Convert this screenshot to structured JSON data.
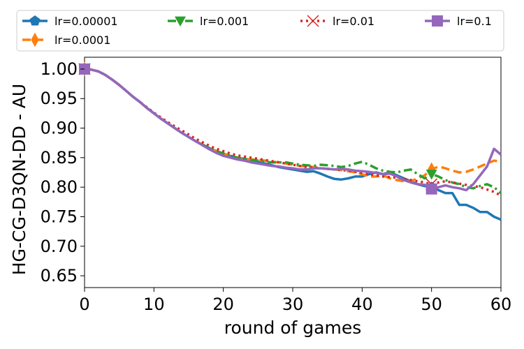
{
  "chart_data": {
    "type": "line",
    "title": "",
    "xlabel": "round of games",
    "ylabel": "HG-CG-D3QN-DD - AU",
    "xlim": [
      0,
      60
    ],
    "ylim": [
      0.63,
      1.02
    ],
    "xticks": [
      0,
      10,
      20,
      30,
      40,
      50,
      60
    ],
    "xtick_labels": [
      "0",
      "10",
      "20",
      "30",
      "40",
      "50",
      "60"
    ],
    "yticks": [
      0.65,
      0.7,
      0.75,
      0.8,
      0.85,
      0.9,
      0.95,
      1.0
    ],
    "ytick_labels": [
      "0.65",
      "0.70",
      "0.75",
      "0.80",
      "0.85",
      "0.90",
      "0.95",
      "1.00"
    ],
    "grid": false,
    "legend_position": "top, above plot",
    "legend_columns": 4,
    "series": [
      {
        "name": "lr=0.00001",
        "color": "#1f77b4",
        "dash": "solid",
        "marker": "pentagon",
        "x": [
          0,
          1,
          2,
          3,
          4,
          5,
          6,
          7,
          8,
          9,
          10,
          11,
          12,
          13,
          14,
          15,
          16,
          17,
          18,
          19,
          20,
          21,
          22,
          23,
          24,
          25,
          26,
          27,
          28,
          29,
          30,
          31,
          32,
          33,
          34,
          35,
          36,
          37,
          38,
          39,
          40,
          41,
          42,
          43,
          44,
          45,
          46,
          47,
          48,
          49,
          50,
          51,
          52,
          53,
          54,
          55,
          56,
          57,
          58,
          59,
          60
        ],
        "values": [
          1.0,
          0.999,
          0.996,
          0.99,
          0.982,
          0.973,
          0.963,
          0.953,
          0.944,
          0.934,
          0.925,
          0.916,
          0.908,
          0.9,
          0.892,
          0.885,
          0.878,
          0.872,
          0.866,
          0.861,
          0.857,
          0.853,
          0.85,
          0.848,
          0.845,
          0.843,
          0.84,
          0.837,
          0.834,
          0.832,
          0.83,
          0.828,
          0.826,
          0.827,
          0.823,
          0.818,
          0.814,
          0.813,
          0.815,
          0.818,
          0.818,
          0.822,
          0.825,
          0.822,
          0.825,
          0.82,
          0.815,
          0.81,
          0.805,
          0.802,
          0.8,
          0.795,
          0.79,
          0.79,
          0.77,
          0.77,
          0.765,
          0.758,
          0.758,
          0.75,
          0.745
        ]
      },
      {
        "name": "lr=0.0001",
        "color": "#ff7f0e",
        "dash": "dashed",
        "marker": "thin_diamond",
        "x": [
          0,
          1,
          2,
          3,
          4,
          5,
          6,
          7,
          8,
          9,
          10,
          11,
          12,
          13,
          14,
          15,
          16,
          17,
          18,
          19,
          20,
          21,
          22,
          23,
          24,
          25,
          26,
          27,
          28,
          29,
          30,
          31,
          32,
          33,
          34,
          35,
          36,
          37,
          38,
          39,
          40,
          41,
          42,
          43,
          44,
          45,
          46,
          47,
          48,
          49,
          50,
          51,
          52,
          53,
          54,
          55,
          56,
          57,
          58,
          59,
          60
        ],
        "values": [
          1.0,
          0.999,
          0.996,
          0.99,
          0.982,
          0.973,
          0.963,
          0.953,
          0.944,
          0.934,
          0.925,
          0.916,
          0.908,
          0.9,
          0.892,
          0.885,
          0.878,
          0.872,
          0.866,
          0.861,
          0.857,
          0.853,
          0.85,
          0.848,
          0.847,
          0.846,
          0.845,
          0.843,
          0.842,
          0.84,
          0.838,
          0.836,
          0.835,
          0.834,
          0.832,
          0.831,
          0.83,
          0.829,
          0.827,
          0.825,
          0.822,
          0.818,
          0.818,
          0.82,
          0.815,
          0.812,
          0.81,
          0.81,
          0.815,
          0.82,
          0.83,
          0.835,
          0.832,
          0.828,
          0.825,
          0.826,
          0.83,
          0.835,
          0.84,
          0.845,
          0.843
        ]
      },
      {
        "name": "lr=0.001",
        "color": "#2ca02c",
        "dash": "dashdot",
        "marker": "triangle_down",
        "x": [
          0,
          1,
          2,
          3,
          4,
          5,
          6,
          7,
          8,
          9,
          10,
          11,
          12,
          13,
          14,
          15,
          16,
          17,
          18,
          19,
          20,
          21,
          22,
          23,
          24,
          25,
          26,
          27,
          28,
          29,
          30,
          31,
          32,
          33,
          34,
          35,
          36,
          37,
          38,
          39,
          40,
          41,
          42,
          43,
          44,
          45,
          46,
          47,
          48,
          49,
          50,
          51,
          52,
          53,
          54,
          55,
          56,
          57,
          58,
          59,
          60
        ],
        "values": [
          1.0,
          0.999,
          0.996,
          0.99,
          0.982,
          0.973,
          0.963,
          0.953,
          0.944,
          0.934,
          0.925,
          0.916,
          0.908,
          0.9,
          0.892,
          0.885,
          0.878,
          0.872,
          0.866,
          0.861,
          0.857,
          0.853,
          0.85,
          0.848,
          0.846,
          0.845,
          0.843,
          0.842,
          0.842,
          0.842,
          0.84,
          0.838,
          0.837,
          0.836,
          0.838,
          0.837,
          0.836,
          0.834,
          0.836,
          0.84,
          0.843,
          0.838,
          0.832,
          0.828,
          0.826,
          0.825,
          0.828,
          0.83,
          0.822,
          0.815,
          0.822,
          0.818,
          0.812,
          0.808,
          0.805,
          0.8,
          0.798,
          0.802,
          0.805,
          0.8,
          0.79
        ]
      },
      {
        "name": "lr=0.01",
        "color": "#d62728",
        "dash": "dotted",
        "marker": "x",
        "x": [
          0,
          1,
          2,
          3,
          4,
          5,
          6,
          7,
          8,
          9,
          10,
          11,
          12,
          13,
          14,
          15,
          16,
          17,
          18,
          19,
          20,
          21,
          22,
          23,
          24,
          25,
          26,
          27,
          28,
          29,
          30,
          31,
          32,
          33,
          34,
          35,
          36,
          37,
          38,
          39,
          40,
          41,
          42,
          43,
          44,
          45,
          46,
          47,
          48,
          49,
          50,
          51,
          52,
          53,
          54,
          55,
          56,
          57,
          58,
          59,
          60
        ],
        "values": [
          1.0,
          0.999,
          0.996,
          0.99,
          0.982,
          0.973,
          0.963,
          0.953,
          0.944,
          0.935,
          0.926,
          0.918,
          0.91,
          0.903,
          0.896,
          0.889,
          0.882,
          0.876,
          0.87,
          0.865,
          0.861,
          0.857,
          0.854,
          0.852,
          0.85,
          0.848,
          0.846,
          0.844,
          0.842,
          0.84,
          0.838,
          0.836,
          0.834,
          0.833,
          0.832,
          0.831,
          0.83,
          0.829,
          0.828,
          0.826,
          0.824,
          0.822,
          0.82,
          0.818,
          0.817,
          0.816,
          0.814,
          0.812,
          0.81,
          0.808,
          0.805,
          0.808,
          0.81,
          0.808,
          0.806,
          0.804,
          0.802,
          0.8,
          0.796,
          0.792,
          0.786
        ]
      },
      {
        "name": "lr=0.1",
        "color": "#9467bd",
        "dash": "solid",
        "marker": "square",
        "x": [
          0,
          1,
          2,
          3,
          4,
          5,
          6,
          7,
          8,
          9,
          10,
          11,
          12,
          13,
          14,
          15,
          16,
          17,
          18,
          19,
          20,
          21,
          22,
          23,
          24,
          25,
          26,
          27,
          28,
          29,
          30,
          31,
          32,
          33,
          34,
          35,
          36,
          37,
          38,
          39,
          40,
          41,
          42,
          43,
          44,
          45,
          46,
          47,
          48,
          49,
          50,
          51,
          52,
          53,
          54,
          55,
          56,
          57,
          58,
          59,
          60
        ],
        "values": [
          1.0,
          0.999,
          0.996,
          0.99,
          0.982,
          0.973,
          0.963,
          0.953,
          0.944,
          0.934,
          0.925,
          0.916,
          0.908,
          0.9,
          0.892,
          0.885,
          0.878,
          0.871,
          0.864,
          0.858,
          0.853,
          0.85,
          0.847,
          0.845,
          0.842,
          0.84,
          0.838,
          0.836,
          0.835,
          0.833,
          0.832,
          0.83,
          0.83,
          0.832,
          0.832,
          0.831,
          0.83,
          0.831,
          0.83,
          0.828,
          0.827,
          0.826,
          0.824,
          0.822,
          0.823,
          0.818,
          0.812,
          0.808,
          0.805,
          0.804,
          0.797,
          0.8,
          0.803,
          0.8,
          0.798,
          0.795,
          0.805,
          0.82,
          0.835,
          0.865,
          0.855
        ]
      }
    ]
  }
}
